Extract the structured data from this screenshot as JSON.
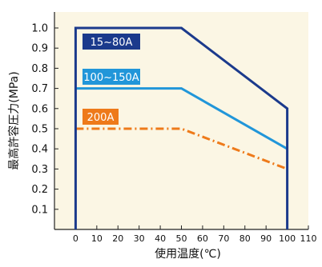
{
  "chart_data": {
    "type": "line",
    "xlabel": "使用温度(℃)",
    "ylabel": "最高許容圧力(MPa)",
    "xlim": [
      -10,
      110
    ],
    "ylim": [
      0,
      1.0
    ],
    "x_ticks": [
      "0",
      "10",
      "20",
      "30",
      "40",
      "50",
      "60",
      "70",
      "80",
      "90",
      "100",
      "110"
    ],
    "y_ticks": [
      "0.1",
      "0.2",
      "0.3",
      "0.4",
      "0.5",
      "0.6",
      "0.7",
      "0.8",
      "0.9",
      "1.0"
    ],
    "grid": false,
    "series": [
      {
        "name": "15~80A",
        "x": [
          0,
          0,
          50,
          100,
          100
        ],
        "y": [
          0,
          1.0,
          1.0,
          0.6,
          0
        ],
        "color": "#1b3a8c",
        "style": "solid"
      },
      {
        "name": "100~150A",
        "x": [
          0,
          50,
          100
        ],
        "y": [
          0.7,
          0.7,
          0.4
        ],
        "color": "#2196d9",
        "style": "solid"
      },
      {
        "name": "200A",
        "x": [
          0,
          50,
          100
        ],
        "y": [
          0.5,
          0.5,
          0.3
        ],
        "color": "#ee7a1a",
        "style": "dashdot"
      }
    ]
  }
}
